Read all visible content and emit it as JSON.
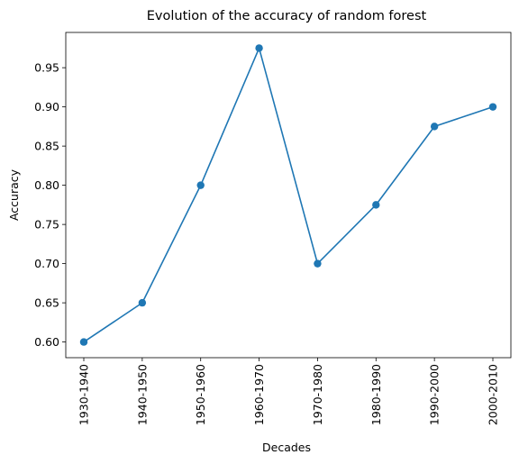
{
  "chart_data": {
    "type": "line",
    "title": "Evolution of the accuracy of random forest",
    "xlabel": "Decades",
    "ylabel": "Accuracy",
    "categories": [
      "1930-1940",
      "1940-1950",
      "1950-1960",
      "1960-1970",
      "1970-1980",
      "1980-1990",
      "1990-2000",
      "2000-2010"
    ],
    "series": [
      {
        "name": "Accuracy",
        "values": [
          0.6,
          0.65,
          0.8,
          0.975,
          0.7,
          0.775,
          0.875,
          0.9
        ],
        "color": "#1f77b4",
        "marker": "circle"
      }
    ],
    "ylim": [
      0.58,
      0.995
    ],
    "yticks": [
      0.6,
      0.65,
      0.7,
      0.75,
      0.8,
      0.85,
      0.9,
      0.95
    ],
    "ytick_labels": [
      "0.60",
      "0.65",
      "0.70",
      "0.75",
      "0.80",
      "0.85",
      "0.90",
      "0.95"
    ],
    "grid": false,
    "legend": "none"
  }
}
